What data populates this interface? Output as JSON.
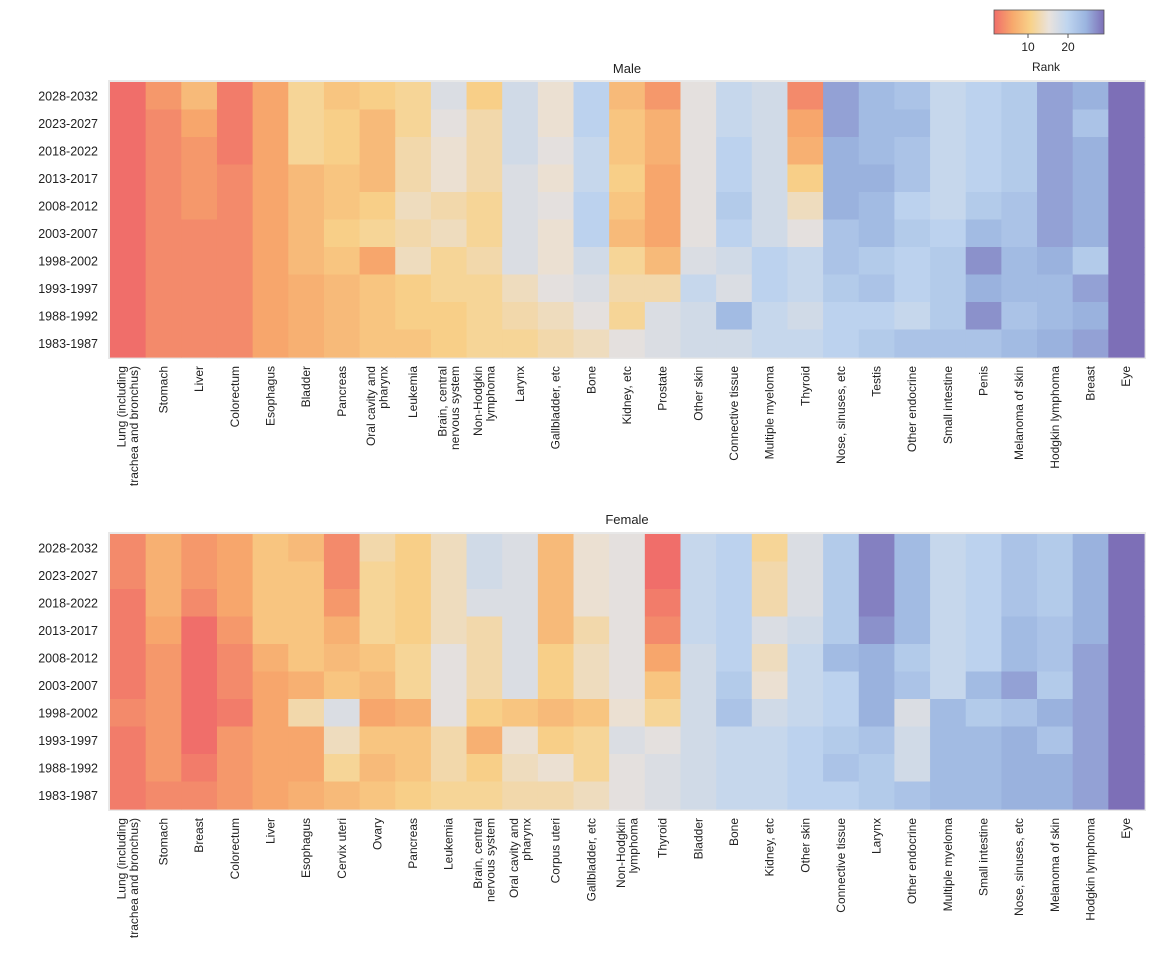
{
  "chart_data": {
    "type": "heatmap",
    "legend": {
      "title": "Rank",
      "ticks": [
        10,
        20
      ],
      "range": [
        1,
        26
      ],
      "position": "top-right",
      "colors": [
        "#f06e6a",
        "#f7a86c",
        "#f8d28a",
        "#e9e2dc",
        "#bfd5ef",
        "#9bb5e0",
        "#7d6fb7"
      ]
    },
    "panels": [
      {
        "title": "Male",
        "rows": [
          "2028-2032",
          "2023-2027",
          "2018-2022",
          "2013-2017",
          "2008-2012",
          "2003-2007",
          "1998-2002",
          "1993-1997",
          "1988-1992",
          "1983-1987"
        ],
        "columns": [
          "Lung (including\ntrachea and bronchus)",
          "Stomach",
          "Liver",
          "Colorectum",
          "Esophagus",
          "Bladder",
          "Pancreas",
          "Oral cavity and\npharynx",
          "Leukemia",
          "Brain, central\nnervous system",
          "Non-Hodgkin\nlymphoma",
          "Larynx",
          "Gallbladder, etc",
          "Bone",
          "Kidney, etc",
          "Prostate",
          "Other skin",
          "Connective tissue",
          "Multiple myeloma",
          "Thyroid",
          "Nose, sinuses, etc",
          "Testis",
          "Other endocrine",
          "Small intestine",
          "Penis",
          "Melanoma of skin",
          "Hodgkin lymphoma",
          "Breast",
          "Eye"
        ],
        "values": [
          [
            1,
            4,
            7,
            2,
            5,
            10,
            8,
            9,
            10,
            15,
            9,
            16,
            13,
            18,
            7,
            4,
            14,
            17,
            16,
            3,
            23,
            21,
            20,
            17,
            18,
            19,
            23,
            22,
            26
          ],
          [
            1,
            3,
            5,
            2,
            5,
            10,
            9,
            7,
            10,
            14,
            11,
            16,
            13,
            18,
            8,
            6,
            14,
            17,
            16,
            5,
            23,
            21,
            21,
            17,
            18,
            19,
            23,
            20,
            26
          ],
          [
            1,
            3,
            4,
            2,
            5,
            10,
            9,
            7,
            11,
            13,
            11,
            16,
            14,
            17,
            8,
            6,
            14,
            18,
            16,
            6,
            22,
            21,
            20,
            17,
            18,
            19,
            23,
            22,
            26
          ],
          [
            1,
            3,
            4,
            3,
            5,
            7,
            8,
            7,
            11,
            13,
            11,
            15,
            13,
            17,
            9,
            5,
            14,
            18,
            16,
            9,
            22,
            22,
            20,
            17,
            18,
            19,
            23,
            22,
            26
          ],
          [
            1,
            3,
            4,
            3,
            5,
            7,
            8,
            9,
            12,
            11,
            10,
            15,
            14,
            18,
            8,
            5,
            14,
            19,
            16,
            12,
            22,
            21,
            18,
            17,
            19,
            20,
            23,
            22,
            26
          ],
          [
            1,
            3,
            3,
            3,
            5,
            7,
            9,
            10,
            11,
            12,
            10,
            15,
            13,
            18,
            7,
            5,
            14,
            18,
            16,
            14,
            20,
            21,
            19,
            18,
            21,
            20,
            23,
            22,
            26
          ],
          [
            1,
            3,
            3,
            3,
            5,
            7,
            8,
            5,
            12,
            10,
            11,
            15,
            13,
            16,
            10,
            7,
            15,
            16,
            18,
            17,
            20,
            19,
            18,
            19,
            24,
            21,
            22,
            19,
            26
          ],
          [
            1,
            3,
            3,
            3,
            5,
            6,
            7,
            8,
            9,
            10,
            10,
            12,
            14,
            15,
            11,
            11,
            17,
            15,
            18,
            17,
            19,
            20,
            18,
            19,
            22,
            21,
            21,
            23,
            26
          ],
          [
            1,
            3,
            3,
            3,
            5,
            6,
            7,
            8,
            9,
            9,
            10,
            11,
            12,
            14,
            10,
            15,
            16,
            21,
            17,
            16,
            18,
            18,
            17,
            19,
            24,
            20,
            21,
            22,
            26
          ],
          [
            1,
            3,
            3,
            3,
            5,
            6,
            7,
            8,
            8,
            9,
            10,
            10,
            11,
            12,
            14,
            15,
            16,
            16,
            17,
            17,
            18,
            19,
            20,
            20,
            20,
            21,
            22,
            23,
            26
          ]
        ]
      },
      {
        "title": "Female",
        "rows": [
          "2028-2032",
          "2023-2027",
          "2018-2022",
          "2013-2017",
          "2008-2012",
          "2003-2007",
          "1998-2002",
          "1993-1997",
          "1988-1992",
          "1983-1987"
        ],
        "columns": [
          "Lung (including\ntrachea and bronchus)",
          "Stomach",
          "Breast",
          "Colorectum",
          "Liver",
          "Esophagus",
          "Cervix uteri",
          "Ovary",
          "Pancreas",
          "Leukemia",
          "Brain, central\nnervous system",
          "Oral cavity and\npharynx",
          "Corpus uteri",
          "Gallbladder, etc",
          "Non-Hodgkin\nlymphoma",
          "Thyroid",
          "Bladder",
          "Bone",
          "Kidney, etc",
          "Other skin",
          "Connective tissue",
          "Larynx",
          "Other endocrine",
          "Multiple myeloma",
          "Small intestine",
          "Nose, sinuses, etc",
          "Melanoma of skin",
          "Hodgkin lymphoma",
          "Eye"
        ],
        "values": [
          [
            3,
            6,
            4,
            5,
            8,
            7,
            3,
            11,
            9,
            12,
            16,
            15,
            7,
            13,
            14,
            1,
            17,
            18,
            10,
            15,
            19,
            25,
            21,
            17,
            18,
            20,
            19,
            22,
            26
          ],
          [
            3,
            6,
            4,
            5,
            8,
            8,
            3,
            10,
            9,
            12,
            16,
            15,
            7,
            13,
            14,
            1,
            17,
            18,
            11,
            15,
            19,
            25,
            21,
            17,
            18,
            20,
            19,
            22,
            26
          ],
          [
            2,
            6,
            3,
            5,
            8,
            8,
            4,
            10,
            9,
            12,
            15,
            15,
            7,
            13,
            14,
            2,
            17,
            18,
            11,
            15,
            19,
            25,
            21,
            17,
            18,
            20,
            19,
            22,
            26
          ],
          [
            2,
            5,
            1,
            4,
            8,
            8,
            6,
            10,
            9,
            12,
            11,
            15,
            7,
            11,
            14,
            3,
            17,
            18,
            15,
            16,
            19,
            24,
            21,
            17,
            18,
            21,
            20,
            22,
            26
          ],
          [
            2,
            4,
            1,
            3,
            6,
            8,
            7,
            8,
            10,
            14,
            11,
            15,
            9,
            12,
            14,
            5,
            16,
            18,
            12,
            17,
            21,
            22,
            19,
            17,
            18,
            21,
            20,
            23,
            26
          ],
          [
            2,
            4,
            1,
            3,
            5,
            6,
            8,
            7,
            10,
            14,
            11,
            15,
            9,
            12,
            14,
            8,
            16,
            19,
            13,
            17,
            18,
            22,
            20,
            17,
            21,
            23,
            19,
            23,
            26
          ],
          [
            3,
            4,
            1,
            2,
            5,
            11,
            15,
            5,
            6,
            14,
            9,
            8,
            7,
            8,
            13,
            10,
            16,
            20,
            16,
            17,
            18,
            22,
            15,
            21,
            19,
            20,
            22,
            23,
            26
          ],
          [
            2,
            4,
            1,
            4,
            5,
            5,
            12,
            8,
            8,
            11,
            6,
            13,
            9,
            10,
            15,
            14,
            16,
            17,
            17,
            18,
            19,
            20,
            16,
            21,
            21,
            22,
            20,
            23,
            26
          ],
          [
            2,
            4,
            2,
            4,
            5,
            5,
            10,
            7,
            8,
            11,
            9,
            12,
            13,
            10,
            14,
            15,
            16,
            17,
            17,
            18,
            20,
            19,
            16,
            21,
            21,
            22,
            22,
            23,
            26
          ],
          [
            2,
            3,
            3,
            4,
            5,
            6,
            7,
            8,
            9,
            10,
            10,
            11,
            11,
            12,
            14,
            15,
            16,
            17,
            17,
            18,
            18,
            19,
            20,
            21,
            21,
            22,
            22,
            23,
            26
          ]
        ]
      }
    ]
  }
}
